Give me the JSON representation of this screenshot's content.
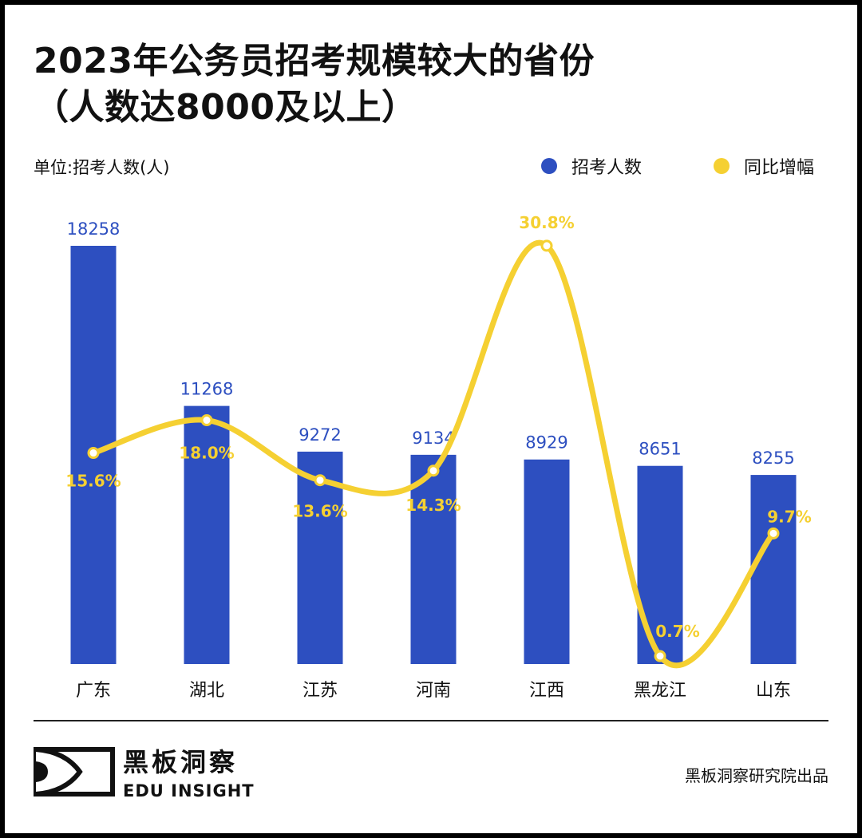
{
  "title_line1": "2023年公务员招考规模较大的省份",
  "title_line2": "（人数达8000及以上）",
  "unit_label": "单位:招考人数(人)",
  "legend": [
    {
      "name": "招考人数",
      "color": "#2d4fc0"
    },
    {
      "name": "同比增幅",
      "color": "#f5d032"
    }
  ],
  "chart_data": {
    "type": "bar+line",
    "categories": [
      "广东",
      "湖北",
      "江苏",
      "河南",
      "江西",
      "黑龙江",
      "山东"
    ],
    "series": [
      {
        "name": "招考人数",
        "type": "bar",
        "values": [
          18258,
          11268,
          9272,
          9134,
          8929,
          8651,
          8255
        ],
        "labels": [
          "18258",
          "11268",
          "9272",
          "9134",
          "8929",
          "8651",
          "8255"
        ],
        "color": "#2d4fc0"
      },
      {
        "name": "同比增幅",
        "type": "line",
        "values": [
          15.6,
          18.0,
          13.6,
          14.3,
          30.8,
          0.7,
          9.7
        ],
        "labels": [
          "15.6%",
          "18.0%",
          "13.6%",
          "14.3%",
          "30.8%",
          "0.7%",
          "9.7%"
        ],
        "color": "#f5d032"
      }
    ],
    "legend_position": "top-right",
    "grid": false
  },
  "logo": {
    "cn": "黑板洞察",
    "en": "EDU INSIGHT"
  },
  "credit": "黑板洞察研究院出品"
}
